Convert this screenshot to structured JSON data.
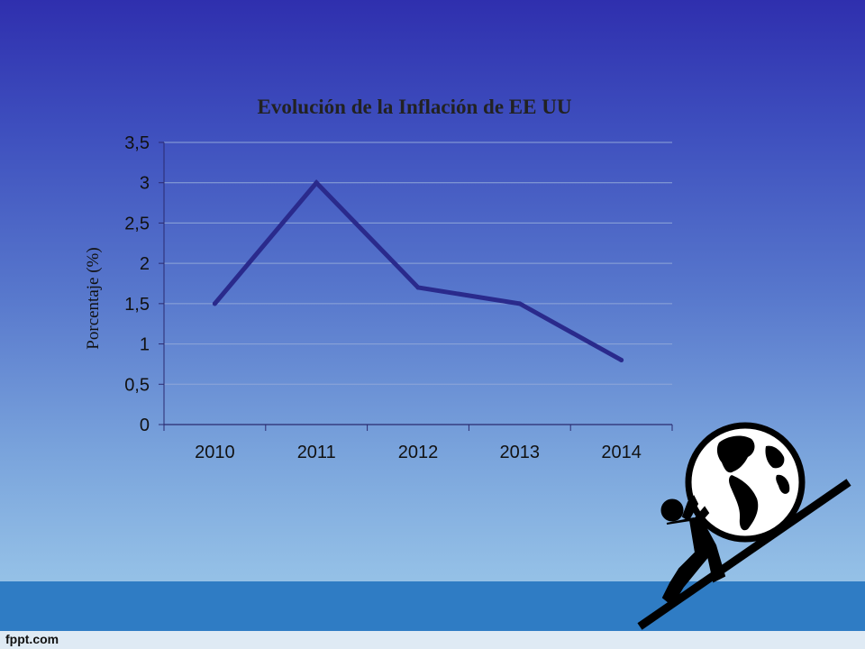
{
  "slide": {
    "footer_brand": "fppt.com"
  },
  "chart_data": {
    "type": "line",
    "title": "Evolución de la Inflación de EE UU",
    "xlabel": "",
    "ylabel": "Porcentaje (%)",
    "categories": [
      "2010",
      "2011",
      "2012",
      "2013",
      "2014"
    ],
    "series": [
      {
        "values": [
          1.5,
          3.0,
          1.7,
          1.5,
          0.8
        ]
      }
    ],
    "ylim": [
      0,
      3.5
    ],
    "yticks": [
      0,
      0.5,
      1,
      1.5,
      2,
      2.5,
      3,
      3.5
    ],
    "ytick_labels": [
      "0",
      "0,5",
      "1",
      "1,5",
      "2",
      "2,5",
      "3",
      "3,5"
    ],
    "grid": true,
    "legend": "none",
    "colors": {
      "line": "#2a2a8c",
      "grid": "#8fa6d8",
      "axis": "#2a2a70",
      "tick_text": "#111111"
    }
  },
  "illustration": {
    "icon": "sisyphus-pushing-globe-icon"
  }
}
